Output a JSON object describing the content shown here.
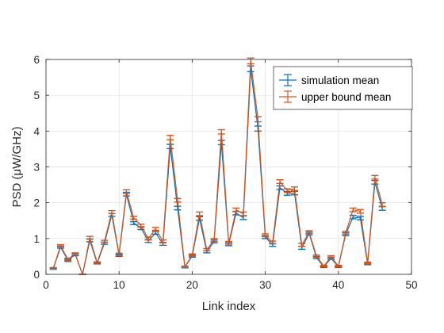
{
  "chart_data": {
    "type": "line",
    "title": "",
    "xlabel": "Link index",
    "ylabel": "PSD (μW/GHz)",
    "xlim": [
      0,
      50
    ],
    "ylim": [
      0,
      6
    ],
    "xticks": [
      0,
      10,
      20,
      30,
      40,
      50
    ],
    "yticks": [
      0,
      1,
      2,
      3,
      4,
      5,
      6
    ],
    "grid": true,
    "legend_position": "top-right",
    "x": [
      1,
      2,
      3,
      4,
      5,
      6,
      7,
      8,
      9,
      10,
      11,
      12,
      13,
      14,
      15,
      16,
      17,
      18,
      19,
      20,
      21,
      22,
      23,
      24,
      25,
      26,
      27,
      28,
      29,
      30,
      31,
      32,
      33,
      34,
      35,
      36,
      37,
      38,
      39,
      40,
      41,
      42,
      43,
      44,
      45,
      46
    ],
    "series": [
      {
        "name": "simulation mean",
        "color": "#0072bd",
        "values": [
          0.16,
          0.76,
          0.39,
          0.55,
          0.0,
          0.95,
          0.31,
          0.87,
          1.66,
          0.53,
          2.24,
          1.43,
          1.29,
          0.93,
          1.16,
          0.85,
          3.57,
          1.85,
          0.2,
          0.51,
          1.56,
          0.63,
          0.92,
          3.68,
          0.84,
          1.71,
          1.58,
          5.74,
          4.07,
          1.04,
          0.82,
          2.42,
          2.26,
          2.27,
          0.74,
          1.14,
          0.47,
          0.21,
          0.45,
          0.21,
          1.12,
          1.6,
          1.57,
          0.29,
          2.57,
          1.84
        ],
        "errors": [
          0.02,
          0.03,
          0.03,
          0.03,
          0.0,
          0.04,
          0.02,
          0.03,
          0.04,
          0.03,
          0.05,
          0.04,
          0.04,
          0.04,
          0.04,
          0.04,
          0.06,
          0.05,
          0.02,
          0.03,
          0.05,
          0.03,
          0.04,
          0.06,
          0.04,
          0.05,
          0.05,
          0.08,
          0.07,
          0.04,
          0.04,
          0.05,
          0.05,
          0.05,
          0.04,
          0.04,
          0.03,
          0.02,
          0.03,
          0.02,
          0.04,
          0.05,
          0.05,
          0.02,
          0.05,
          0.05
        ]
      },
      {
        "name": "upper bound mean",
        "color": "#d95319",
        "values": [
          0.17,
          0.8,
          0.42,
          0.57,
          0.0,
          1.02,
          0.33,
          0.92,
          1.74,
          0.56,
          2.31,
          1.58,
          1.36,
          1.0,
          1.27,
          0.92,
          3.82,
          2.07,
          0.21,
          0.54,
          1.69,
          0.69,
          0.96,
          3.98,
          0.88,
          1.8,
          1.69,
          5.96,
          4.33,
          1.09,
          0.89,
          2.59,
          2.34,
          2.39,
          0.82,
          1.18,
          0.51,
          0.23,
          0.49,
          0.23,
          1.16,
          1.8,
          1.76,
          0.32,
          2.71,
          1.95
        ],
        "errors": [
          0.02,
          0.03,
          0.03,
          0.03,
          0.0,
          0.04,
          0.02,
          0.03,
          0.04,
          0.03,
          0.05,
          0.04,
          0.04,
          0.04,
          0.04,
          0.04,
          0.06,
          0.05,
          0.02,
          0.03,
          0.05,
          0.03,
          0.04,
          0.06,
          0.04,
          0.05,
          0.05,
          0.08,
          0.07,
          0.04,
          0.04,
          0.05,
          0.05,
          0.05,
          0.04,
          0.04,
          0.03,
          0.02,
          0.03,
          0.02,
          0.04,
          0.05,
          0.05,
          0.02,
          0.05,
          0.05
        ]
      }
    ]
  }
}
